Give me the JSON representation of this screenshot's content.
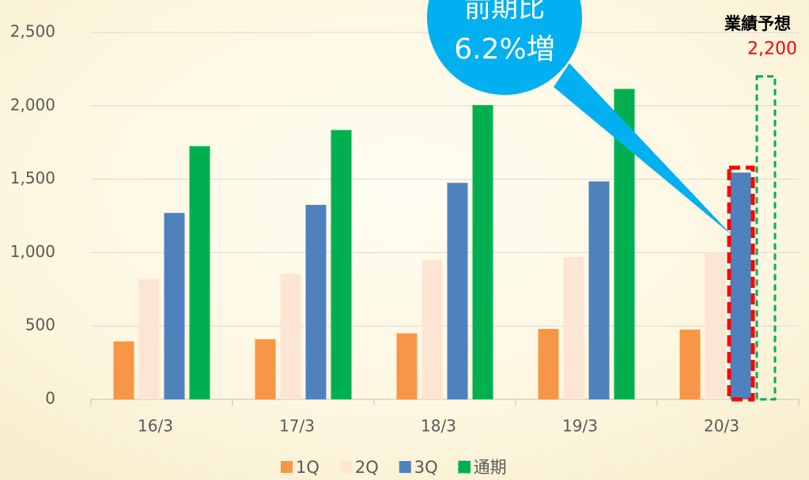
{
  "chart_data": {
    "type": "bar",
    "categories": [
      "16/3",
      "17/3",
      "18/3",
      "19/3",
      "20/3"
    ],
    "series": [
      {
        "name": "1Q",
        "color": "#f79646",
        "values": [
          395,
          410,
          450,
          480,
          475
        ]
      },
      {
        "name": "2Q",
        "color": "#fde5d4",
        "values": [
          820,
          855,
          950,
          970,
          1000
        ]
      },
      {
        "name": "3Q",
        "color": "#4f81bd",
        "values": [
          1270,
          1325,
          1475,
          1485,
          1545
        ]
      },
      {
        "name": "通期",
        "color": "#00b050",
        "values": [
          1725,
          1835,
          2005,
          2115,
          2200
        ],
        "dashed": [
          false,
          false,
          false,
          false,
          true
        ],
        "value_labels": [
          null,
          null,
          null,
          null,
          "2,200"
        ]
      }
    ],
    "ylim": [
      0,
      2500
    ],
    "yticks": [
      0,
      500,
      {
        "value": 1000,
        "label": "1,000"
      },
      {
        "value": 1500,
        "label": "1,500"
      },
      {
        "value": 2000,
        "label": "2,000"
      },
      {
        "value": 2500,
        "label": "2,500"
      }
    ],
    "grid": true,
    "annotations": [
      "前期比",
      "6.2%増",
      "業績予想"
    ]
  }
}
